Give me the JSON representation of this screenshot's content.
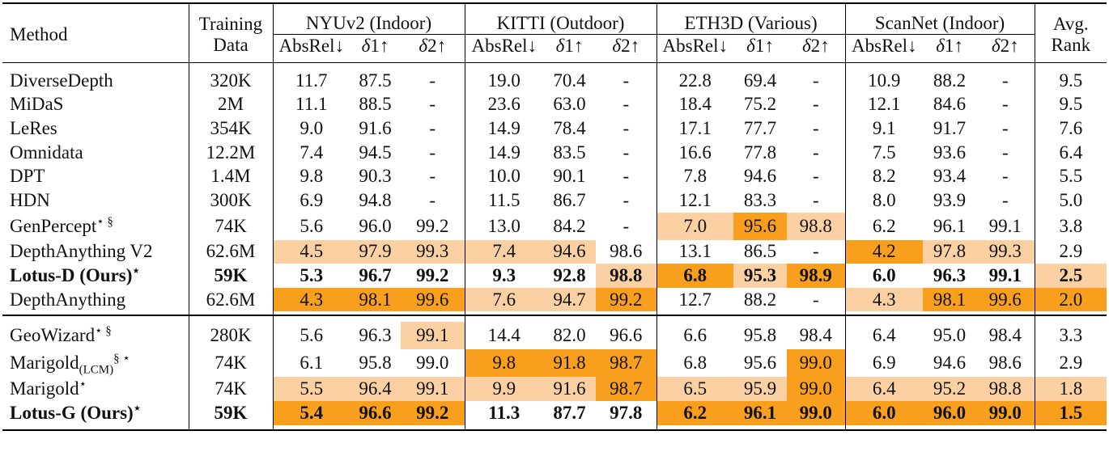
{
  "header": {
    "method": "Method",
    "training_line1": "Training",
    "training_line2": "Data",
    "datasets": [
      "NYUv2 (Indoor)",
      "KITTI (Outdoor)",
      "ETH3D (Various)",
      "ScanNet (Indoor)"
    ],
    "avg_line1": "Avg.",
    "avg_line2": "Rank",
    "metric_absrel": "AbsRel↓",
    "metric_d1_sym": "δ",
    "metric_d1_rest": "1↑",
    "metric_d2_sym": "δ",
    "metric_d2_rest": "2↑"
  },
  "colors": {
    "best": "#f99f1e",
    "second": "#fbd0a3"
  },
  "rows": [
    {
      "method": "DiverseDepth",
      "sup": "",
      "sub": "",
      "data": "320K",
      "v": [
        "11.7",
        "87.5",
        "-",
        "19.0",
        "70.4",
        "-",
        "22.8",
        "69.4",
        "-",
        "10.9",
        "88.2",
        "-",
        "9.5"
      ],
      "hl": [
        "",
        "",
        "",
        "",
        "",
        "",
        "",
        "",
        "",
        "",
        "",
        "",
        ""
      ]
    },
    {
      "method": "MiDaS",
      "sup": "",
      "sub": "",
      "data": "2M",
      "v": [
        "11.1",
        "88.5",
        "-",
        "23.6",
        "63.0",
        "-",
        "18.4",
        "75.2",
        "-",
        "12.1",
        "84.6",
        "-",
        "9.5"
      ],
      "hl": [
        "",
        "",
        "",
        "",
        "",
        "",
        "",
        "",
        "",
        "",
        "",
        "",
        ""
      ]
    },
    {
      "method": "LeRes",
      "sup": "",
      "sub": "",
      "data": "354K",
      "v": [
        "9.0",
        "91.6",
        "-",
        "14.9",
        "78.4",
        "-",
        "17.1",
        "77.7",
        "-",
        "9.1",
        "91.7",
        "-",
        "7.6"
      ],
      "hl": [
        "",
        "",
        "",
        "",
        "",
        "",
        "",
        "",
        "",
        "",
        "",
        "",
        ""
      ]
    },
    {
      "method": "Omnidata",
      "sup": "",
      "sub": "",
      "data": "12.2M",
      "v": [
        "7.4",
        "94.5",
        "-",
        "14.9",
        "83.5",
        "-",
        "16.6",
        "77.8",
        "-",
        "7.5",
        "93.6",
        "-",
        "6.4"
      ],
      "hl": [
        "",
        "",
        "",
        "",
        "",
        "",
        "",
        "",
        "",
        "",
        "",
        "",
        ""
      ]
    },
    {
      "method": "DPT",
      "sup": "",
      "sub": "",
      "data": "1.4M",
      "v": [
        "9.8",
        "90.3",
        "-",
        "10.0",
        "90.1",
        "-",
        "7.8",
        "94.6",
        "-",
        "8.2",
        "93.4",
        "-",
        "5.5"
      ],
      "hl": [
        "",
        "",
        "",
        "",
        "",
        "",
        "",
        "",
        "",
        "",
        "",
        "",
        ""
      ]
    },
    {
      "method": "HDN",
      "sup": "",
      "sub": "",
      "data": "300K",
      "v": [
        "6.9",
        "94.8",
        "-",
        "11.5",
        "86.7",
        "-",
        "12.1",
        "83.3",
        "-",
        "8.0",
        "93.9",
        "-",
        "5.0"
      ],
      "hl": [
        "",
        "",
        "",
        "",
        "",
        "",
        "",
        "",
        "",
        "",
        "",
        "",
        ""
      ]
    },
    {
      "method": "GenPercept",
      "sup": "⋆ §",
      "sub": "",
      "data": "74K",
      "v": [
        "5.6",
        "96.0",
        "99.2",
        "13.0",
        "84.2",
        "-",
        "7.0",
        "95.6",
        "98.8",
        "6.2",
        "96.1",
        "99.1",
        "3.8"
      ],
      "hl": [
        "",
        "",
        "",
        "",
        "",
        "",
        "o2",
        "o1",
        "o2",
        "",
        "",
        "",
        ""
      ],
      "tall": true
    },
    {
      "method": "DepthAnything V2",
      "sup": "",
      "sub": "",
      "data": "62.6M",
      "v": [
        "4.5",
        "97.9",
        "99.3",
        "7.4",
        "94.6",
        "98.6",
        "13.1",
        "86.5",
        "-",
        "4.2",
        "97.8",
        "99.3",
        "2.9"
      ],
      "hl": [
        "o2",
        "o2",
        "o2",
        "o2",
        "o2",
        "",
        "",
        "",
        "",
        "o1",
        "o2",
        "o2",
        ""
      ]
    },
    {
      "method": "Lotus-D (Ours)",
      "sup": "⋆",
      "sub": "",
      "data": "59K",
      "v": [
        "5.3",
        "96.7",
        "99.2",
        "9.3",
        "92.8",
        "98.8",
        "6.8",
        "95.3",
        "98.9",
        "6.0",
        "96.3",
        "99.1",
        "2.5"
      ],
      "hl": [
        "",
        "",
        "",
        "",
        "",
        "o2",
        "o1",
        "o2",
        "o1",
        "",
        "",
        "",
        "o2"
      ],
      "bold": true
    },
    {
      "method": "DepthAnything",
      "sup": "",
      "sub": "",
      "data": "62.6M",
      "v": [
        "4.3",
        "98.1",
        "99.6",
        "7.6",
        "94.7",
        "99.2",
        "12.7",
        "88.2",
        "-",
        "4.3",
        "98.1",
        "99.6",
        "2.0"
      ],
      "hl": [
        "o1",
        "o1",
        "o1",
        "o2",
        "o2",
        "o1",
        "",
        "",
        "",
        "o2",
        "o1",
        "o1",
        "o1"
      ]
    },
    {
      "method": "GeoWizard",
      "sup": "⋆ §",
      "sub": "",
      "data": "280K",
      "v": [
        "5.6",
        "96.3",
        "99.1",
        "14.4",
        "82.0",
        "96.6",
        "6.6",
        "95.8",
        "98.4",
        "6.4",
        "95.0",
        "98.4",
        "3.3"
      ],
      "hl": [
        "",
        "",
        "o2",
        "",
        "",
        "",
        "",
        "",
        "",
        "",
        "",
        "",
        ""
      ],
      "tall": true
    },
    {
      "method": "Marigold",
      "sup": "§ ⋆",
      "sub": "(LCM)",
      "data": "74K",
      "v": [
        "6.1",
        "95.8",
        "99.0",
        "9.8",
        "91.8",
        "98.7",
        "6.8",
        "95.6",
        "99.0",
        "6.9",
        "94.6",
        "98.6",
        "2.9"
      ],
      "hl": [
        "",
        "",
        "",
        "o1",
        "o1",
        "o1",
        "",
        "",
        "o1",
        "",
        "",
        "",
        ""
      ],
      "tall": true
    },
    {
      "method": "Marigold",
      "sup": "⋆",
      "sub": "",
      "data": "74K",
      "v": [
        "5.5",
        "96.4",
        "99.1",
        "9.9",
        "91.6",
        "98.7",
        "6.5",
        "95.9",
        "99.0",
        "6.4",
        "95.2",
        "98.8",
        "1.8"
      ],
      "hl": [
        "o2",
        "o2",
        "o2",
        "o2",
        "o2",
        "o1",
        "o2",
        "o2",
        "o1",
        "o2",
        "o2",
        "o2",
        "o2"
      ]
    },
    {
      "method": "Lotus-G (Ours)",
      "sup": "⋆",
      "sub": "",
      "data": "59K",
      "v": [
        "5.4",
        "96.6",
        "99.2",
        "11.3",
        "87.7",
        "97.8",
        "6.2",
        "96.1",
        "99.0",
        "6.0",
        "96.0",
        "99.0",
        "1.5"
      ],
      "hl": [
        "o1",
        "o1",
        "o1",
        "",
        "",
        "",
        "o1",
        "o1",
        "o1",
        "o1",
        "o1",
        "o1",
        "o1"
      ],
      "bold": true
    }
  ]
}
